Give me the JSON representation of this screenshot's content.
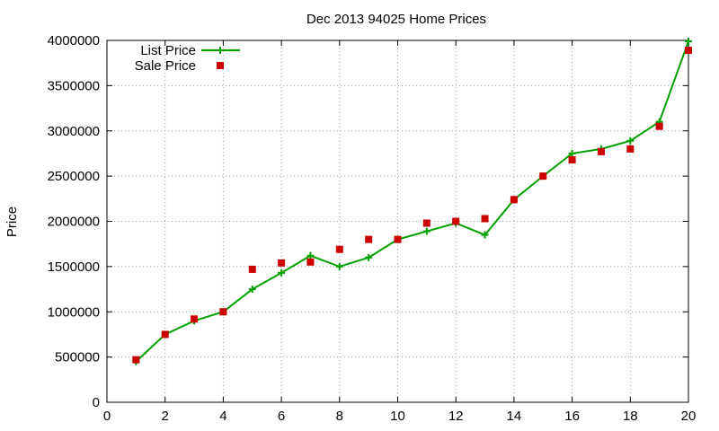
{
  "chart_data": {
    "type": "line",
    "title": "Dec 2013 94025 Home Prices",
    "xlabel": "",
    "ylabel": "Price",
    "xlim": [
      0,
      20
    ],
    "ylim": [
      0,
      4000000
    ],
    "xticks": [
      0,
      2,
      4,
      6,
      8,
      10,
      12,
      14,
      16,
      18,
      20
    ],
    "yticks": [
      0,
      500000,
      1000000,
      1500000,
      2000000,
      2500000,
      3000000,
      3500000,
      4000000
    ],
    "grid": true,
    "legend_position": "top-left",
    "series": [
      {
        "name": "List Price",
        "style": "line+plus",
        "color": "#00a000",
        "x": [
          1,
          2,
          3,
          4,
          5,
          6,
          7,
          8,
          9,
          10,
          11,
          12,
          13,
          14,
          15,
          16,
          17,
          18,
          19,
          20
        ],
        "values": [
          450000,
          750000,
          900000,
          1000000,
          1250000,
          1430000,
          1620000,
          1500000,
          1600000,
          1800000,
          1890000,
          1980000,
          1850000,
          2240000,
          2500000,
          2750000,
          2800000,
          2890000,
          3100000,
          3990000
        ]
      },
      {
        "name": "Sale Price",
        "style": "square",
        "color": "#cc0000",
        "x": [
          1,
          2,
          3,
          4,
          5,
          6,
          7,
          8,
          9,
          10,
          11,
          12,
          13,
          14,
          15,
          16,
          17,
          18,
          19,
          20
        ],
        "values": [
          470000,
          750000,
          920000,
          1000000,
          1470000,
          1540000,
          1550000,
          1690000,
          1800000,
          1800000,
          1980000,
          2000000,
          2030000,
          2240000,
          2500000,
          2680000,
          2770000,
          2800000,
          3050000,
          3890000
        ]
      }
    ]
  }
}
